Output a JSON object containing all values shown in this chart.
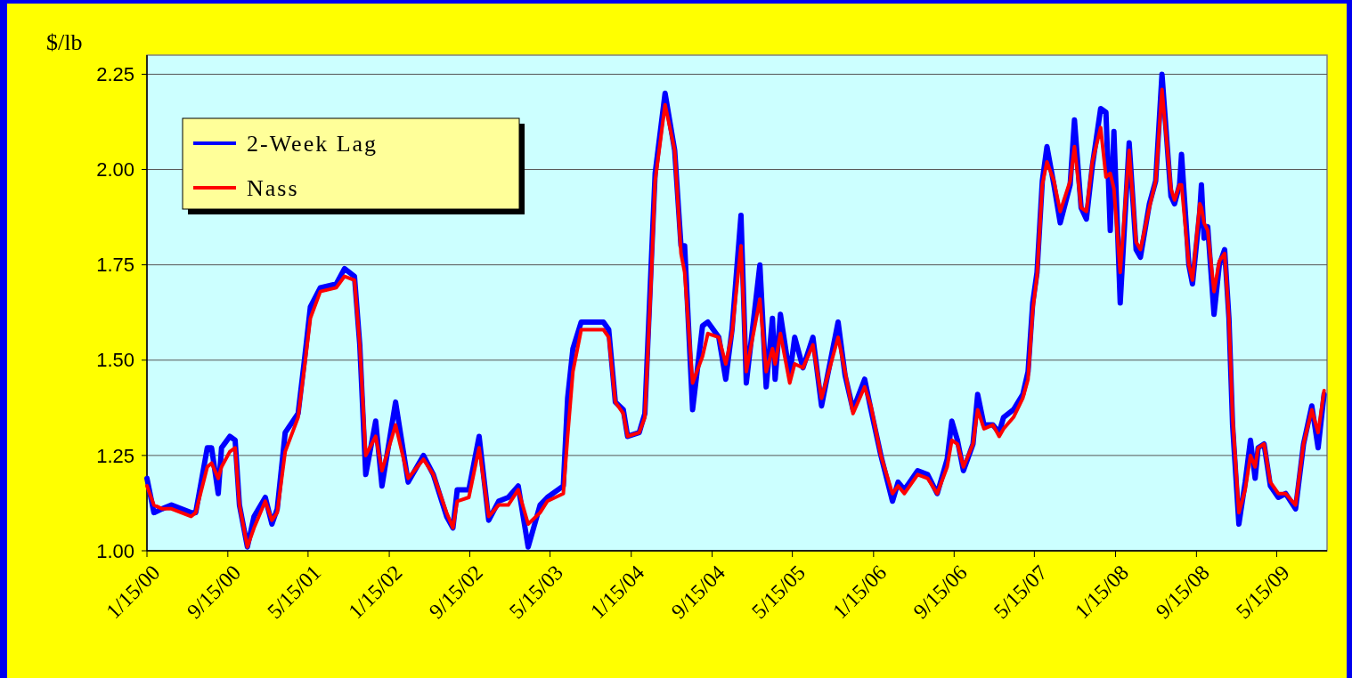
{
  "chart_data": {
    "type": "line",
    "ylabel": "$/lb",
    "legend": "top left",
    "grid": "y",
    "line_style": "solid",
    "marker": "none",
    "xlim": [
      "2000-01-15",
      "2009-10-14"
    ],
    "ylim": [
      1,
      2.3
    ],
    "xticks": [
      {
        "value": "2000-01-15",
        "label": "1/15/00"
      },
      {
        "value": "2000-09-15",
        "label": "9/15/00"
      },
      {
        "value": "2001-05-15",
        "label": "5/15/01"
      },
      {
        "value": "2002-01-15",
        "label": "1/15/02"
      },
      {
        "value": "2002-09-15",
        "label": "9/15/02"
      },
      {
        "value": "2003-05-15",
        "label": "5/15/03"
      },
      {
        "value": "2004-01-15",
        "label": "1/15/04"
      },
      {
        "value": "2004-09-15",
        "label": "9/15/04"
      },
      {
        "value": "2005-05-15",
        "label": "5/15/05"
      },
      {
        "value": "2006-01-15",
        "label": "1/15/06"
      },
      {
        "value": "2006-09-15",
        "label": "9/15/06"
      },
      {
        "value": "2007-05-15",
        "label": "5/15/07"
      },
      {
        "value": "2008-01-15",
        "label": "1/15/08"
      },
      {
        "value": "2008-09-15",
        "label": "9/15/08"
      },
      {
        "value": "2009-05-15",
        "label": "5/15/09"
      }
    ],
    "yticks": [
      {
        "value": 1,
        "label": "1.00"
      },
      {
        "value": 1.25,
        "label": "1.25"
      },
      {
        "value": 1.5,
        "label": "1.50"
      },
      {
        "value": 1.75,
        "label": "1.75"
      },
      {
        "value": 2,
        "label": "2.00"
      },
      {
        "value": 2.25,
        "label": "2.25"
      }
    ],
    "x": [
      "2000-01-15",
      "2000-02-05",
      "2000-03-01",
      "2000-03-29",
      "2000-05-27",
      "2000-06-10",
      "2000-07-15",
      "2000-07-28",
      "2000-08-17",
      "2000-08-27",
      "2000-09-21",
      "2000-10-07",
      "2000-10-20",
      "2000-11-13",
      "2000-12-03",
      "2001-01-06",
      "2001-01-26",
      "2001-02-11",
      "2001-03-07",
      "2001-04-15",
      "2001-05-04",
      "2001-05-22",
      "2001-06-21",
      "2001-08-08",
      "2001-09-02",
      "2001-10-02",
      "2001-10-18",
      "2001-11-05",
      "2001-12-05",
      "2001-12-24",
      "2002-02-03",
      "2002-03-13",
      "2002-04-28",
      "2002-05-28",
      "2002-07-07",
      "2002-07-26",
      "2002-08-08",
      "2002-09-12",
      "2002-10-13",
      "2002-11-11",
      "2002-12-11",
      "2003-01-09",
      "2003-02-08",
      "2003-03-10",
      "2003-04-15",
      "2003-05-07",
      "2003-06-24",
      "2003-07-07",
      "2003-07-23",
      "2003-08-17",
      "2003-09-19",
      "2003-10-23",
      "2003-11-08",
      "2003-11-28",
      "2003-12-22",
      "2004-01-04",
      "2004-02-08",
      "2004-02-25",
      "2004-03-15",
      "2004-03-27",
      "2004-04-26",
      "2004-05-25",
      "2004-06-13",
      "2004-06-24",
      "2004-07-18",
      "2004-08-17",
      "2004-09-02",
      "2004-10-05",
      "2004-10-26",
      "2004-11-14",
      "2004-12-11",
      "2004-12-27",
      "2005-02-06",
      "2005-02-25",
      "2005-03-16",
      "2005-03-24",
      "2005-04-09",
      "2005-05-07",
      "2005-05-22",
      "2005-06-16",
      "2005-07-16",
      "2005-08-11",
      "2005-09-30",
      "2005-10-21",
      "2005-11-14",
      "2005-12-19",
      "2006-01-07",
      "2006-02-06",
      "2006-03-13",
      "2006-03-30",
      "2006-04-18",
      "2006-05-28",
      "2006-06-27",
      "2006-07-26",
      "2006-08-25",
      "2006-09-08",
      "2006-09-25",
      "2006-10-13",
      "2006-11-11",
      "2006-11-25",
      "2006-12-14",
      "2007-01-10",
      "2007-01-29",
      "2007-02-11",
      "2007-03-13",
      "2007-04-10",
      "2007-04-26",
      "2007-05-10",
      "2007-05-23",
      "2007-06-08",
      "2007-06-22",
      "2007-07-13",
      "2007-08-01",
      "2007-08-31",
      "2007-09-13",
      "2007-10-03",
      "2007-10-19",
      "2007-11-06",
      "2007-12-01",
      "2007-12-17",
      "2007-12-30",
      "2008-01-10",
      "2008-01-29",
      "2008-02-25",
      "2008-03-17",
      "2008-03-30",
      "2008-04-26",
      "2008-05-15",
      "2008-06-03",
      "2008-06-30",
      "2008-07-11",
      "2008-07-26",
      "2008-08-01",
      "2008-08-23",
      "2008-09-03",
      "2008-09-25",
      "2008-09-30",
      "2008-10-08",
      "2008-10-19",
      "2008-11-07",
      "2008-11-23",
      "2008-12-09",
      "2008-12-22",
      "2009-01-02",
      "2009-01-21",
      "2009-02-09",
      "2009-02-25",
      "2009-03-11",
      "2009-03-20",
      "2009-04-07",
      "2009-04-26",
      "2009-05-20",
      "2009-06-11",
      "2009-07-11",
      "2009-08-04",
      "2009-08-29",
      "2009-09-17",
      "2009-10-05"
    ],
    "series": [
      {
        "name": "2-Week Lag",
        "color": "#0000ff",
        "values": [
          1.19,
          1.1,
          1.11,
          1.12,
          1.1,
          1.1,
          1.27,
          1.27,
          1.15,
          1.27,
          1.3,
          1.29,
          1.12,
          1.01,
          1.09,
          1.14,
          1.07,
          1.11,
          1.31,
          1.36,
          1.5,
          1.64,
          1.69,
          1.7,
          1.74,
          1.72,
          1.54,
          1.2,
          1.34,
          1.17,
          1.39,
          1.18,
          1.25,
          1.2,
          1.09,
          1.06,
          1.16,
          1.16,
          1.3,
          1.08,
          1.13,
          1.14,
          1.17,
          1.01,
          1.12,
          1.14,
          1.17,
          1.4,
          1.53,
          1.6,
          1.6,
          1.6,
          1.58,
          1.39,
          1.37,
          1.3,
          1.31,
          1.36,
          1.75,
          1.99,
          2.2,
          2.05,
          1.8,
          1.8,
          1.37,
          1.59,
          1.6,
          1.56,
          1.45,
          1.58,
          1.88,
          1.44,
          1.75,
          1.43,
          1.61,
          1.45,
          1.62,
          1.46,
          1.56,
          1.48,
          1.56,
          1.38,
          1.6,
          1.46,
          1.37,
          1.45,
          1.37,
          1.25,
          1.13,
          1.18,
          1.16,
          1.21,
          1.2,
          1.15,
          1.24,
          1.34,
          1.29,
          1.21,
          1.28,
          1.41,
          1.33,
          1.33,
          1.31,
          1.35,
          1.37,
          1.41,
          1.47,
          1.65,
          1.73,
          1.97,
          2.06,
          1.96,
          1.86,
          1.96,
          2.13,
          1.9,
          1.87,
          2.01,
          2.16,
          2.15,
          1.84,
          2.1,
          1.65,
          2.07,
          1.79,
          1.77,
          1.91,
          1.97,
          2.25,
          1.93,
          1.91,
          1.96,
          2.04,
          1.75,
          1.7,
          1.89,
          1.96,
          1.82,
          1.85,
          1.62,
          1.75,
          1.79,
          1.61,
          1.33,
          1.07,
          1.18,
          1.29,
          1.19,
          1.27,
          1.28,
          1.17,
          1.14,
          1.15,
          1.11,
          1.28,
          1.38,
          1.27,
          1.41
        ]
      },
      {
        "name": "Nass",
        "color": "#ff0000",
        "values": [
          1.17,
          1.12,
          1.11,
          1.11,
          1.09,
          1.1,
          1.22,
          1.23,
          1.19,
          1.22,
          1.26,
          1.27,
          1.12,
          1.01,
          1.06,
          1.13,
          1.08,
          1.1,
          1.26,
          1.35,
          1.48,
          1.61,
          1.68,
          1.69,
          1.72,
          1.71,
          1.54,
          1.25,
          1.3,
          1.21,
          1.33,
          1.19,
          1.24,
          1.2,
          1.1,
          1.06,
          1.13,
          1.14,
          1.27,
          1.09,
          1.12,
          1.12,
          1.16,
          1.07,
          1.1,
          1.13,
          1.15,
          1.3,
          1.47,
          1.58,
          1.58,
          1.58,
          1.56,
          1.39,
          1.36,
          1.3,
          1.31,
          1.35,
          1.71,
          1.97,
          2.17,
          2.05,
          1.78,
          1.73,
          1.44,
          1.51,
          1.57,
          1.56,
          1.49,
          1.57,
          1.8,
          1.47,
          1.66,
          1.47,
          1.53,
          1.49,
          1.57,
          1.44,
          1.49,
          1.48,
          1.54,
          1.4,
          1.56,
          1.47,
          1.36,
          1.43,
          1.38,
          1.25,
          1.15,
          1.17,
          1.15,
          1.2,
          1.19,
          1.15,
          1.22,
          1.29,
          1.28,
          1.22,
          1.28,
          1.37,
          1.32,
          1.33,
          1.3,
          1.32,
          1.35,
          1.4,
          1.45,
          1.63,
          1.72,
          1.96,
          2.02,
          1.97,
          1.89,
          1.97,
          2.06,
          1.9,
          1.89,
          2.02,
          2.11,
          1.98,
          1.99,
          1.95,
          1.73,
          2.05,
          1.81,
          1.79,
          1.9,
          1.97,
          2.21,
          1.95,
          1.92,
          1.96,
          1.96,
          1.75,
          1.71,
          1.91,
          1.9,
          1.86,
          1.84,
          1.68,
          1.76,
          1.78,
          1.61,
          1.35,
          1.1,
          1.16,
          1.25,
          1.22,
          1.27,
          1.28,
          1.18,
          1.15,
          1.15,
          1.12,
          1.28,
          1.37,
          1.31,
          1.42
        ]
      }
    ]
  }
}
